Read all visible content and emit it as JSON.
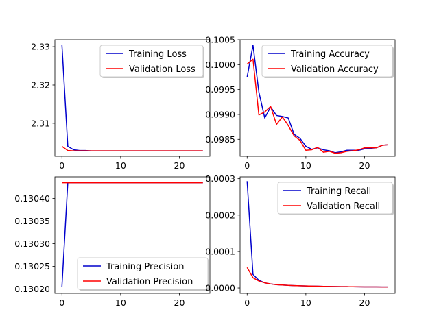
{
  "chart_data": [
    {
      "type": "line",
      "title": "",
      "xlabel": "",
      "ylabel": "",
      "xlim": [
        -1.2,
        25.2
      ],
      "ylim": [
        2.3014,
        2.3318
      ],
      "xticks": [
        0,
        10,
        20
      ],
      "xtick_labels": [
        "0",
        "10",
        "20"
      ],
      "yticks": [
        2.31,
        2.32,
        2.33
      ],
      "ytick_labels": [
        "2.31",
        "2.32",
        "2.33"
      ],
      "legend_position": "top-right",
      "x": [
        0,
        1,
        2,
        3,
        4,
        5,
        6,
        7,
        8,
        9,
        10,
        11,
        12,
        13,
        14,
        15,
        16,
        17,
        18,
        19,
        20,
        21,
        22,
        23,
        24
      ],
      "series": [
        {
          "name": "Training Loss",
          "color": "#0000cc",
          "values": [
            2.3305,
            2.304,
            2.3031,
            2.3029,
            2.3029,
            2.3028,
            2.3028,
            2.3028,
            2.3028,
            2.3028,
            2.3028,
            2.3028,
            2.3028,
            2.3028,
            2.3028,
            2.3028,
            2.3028,
            2.3028,
            2.3028,
            2.3028,
            2.3028,
            2.3028,
            2.3028,
            2.3028,
            2.3028
          ]
        },
        {
          "name": "Validation Loss",
          "color": "#ff0000",
          "values": [
            2.304,
            2.3029,
            2.3028,
            2.3028,
            2.3028,
            2.3028,
            2.3028,
            2.3028,
            2.3028,
            2.3028,
            2.3028,
            2.3028,
            2.3028,
            2.3028,
            2.3028,
            2.3028,
            2.3028,
            2.3028,
            2.3028,
            2.3028,
            2.3028,
            2.3028,
            2.3028,
            2.3028,
            2.3028
          ]
        }
      ]
    },
    {
      "type": "line",
      "title": "",
      "xlabel": "",
      "ylabel": "",
      "xlim": [
        -1.2,
        25.2
      ],
      "ylim": [
        0.09816,
        0.1005
      ],
      "xticks": [
        0,
        10,
        20
      ],
      "xtick_labels": [
        "0",
        "10",
        "20"
      ],
      "yticks": [
        0.0985,
        0.099,
        0.0995,
        0.1,
        0.1005
      ],
      "ytick_labels": [
        "0.0985",
        "0.0990",
        "0.0995",
        "0.1000",
        "0.1005"
      ],
      "legend_position": "top-right",
      "x": [
        0,
        1,
        2,
        3,
        4,
        5,
        6,
        7,
        8,
        9,
        10,
        11,
        12,
        13,
        14,
        15,
        16,
        17,
        18,
        19,
        20,
        21,
        22,
        23,
        24
      ],
      "series": [
        {
          "name": "Training Accuracy",
          "color": "#0000cc",
          "values": [
            0.09975,
            0.10039,
            0.09945,
            0.09893,
            0.09915,
            0.09898,
            0.09896,
            0.09893,
            0.0986,
            0.09852,
            0.09836,
            0.0983,
            0.09833,
            0.09829,
            0.09827,
            0.09823,
            0.09825,
            0.09828,
            0.09828,
            0.09828,
            0.09831,
            0.09832,
            0.09833,
            0.09838,
            0.09839
          ]
        },
        {
          "name": "Validation Accuracy",
          "color": "#ff0000",
          "values": [
            0.10001,
            0.10011,
            0.09899,
            0.09905,
            0.09916,
            0.0988,
            0.09895,
            0.09878,
            0.09857,
            0.09848,
            0.09828,
            0.09829,
            0.09834,
            0.09824,
            0.09826,
            0.09822,
            0.09823,
            0.09826,
            0.09827,
            0.09829,
            0.09833,
            0.09833,
            0.09833,
            0.09838,
            0.09839
          ]
        }
      ]
    },
    {
      "type": "line",
      "title": "",
      "xlabel": "",
      "ylabel": "",
      "xlim": [
        -1.2,
        25.2
      ],
      "ylim": [
        0.13019,
        0.130448
      ],
      "xticks": [
        0,
        10,
        20
      ],
      "xtick_labels": [
        "0",
        "10",
        "20"
      ],
      "yticks": [
        0.1302,
        0.13025,
        0.1303,
        0.13035,
        0.1304
      ],
      "ytick_labels": [
        "0.13020",
        "0.13025",
        "0.13030",
        "0.13035",
        "0.13040"
      ],
      "legend_position": "lower center",
      "x": [
        0,
        1,
        2,
        3,
        4,
        5,
        6,
        7,
        8,
        9,
        10,
        11,
        12,
        13,
        14,
        15,
        16,
        17,
        18,
        19,
        20,
        21,
        22,
        23,
        24
      ],
      "series": [
        {
          "name": "Training Precision",
          "color": "#0000cc",
          "values": [
            0.130205,
            0.130435,
            0.130435,
            0.130435,
            0.130435,
            0.130435,
            0.130435,
            0.130435,
            0.130435,
            0.130435,
            0.130435,
            0.130435,
            0.130435,
            0.130435,
            0.130435,
            0.130435,
            0.130435,
            0.130435,
            0.130435,
            0.130435,
            0.130435,
            0.130435,
            0.130435,
            0.130435,
            0.130435
          ]
        },
        {
          "name": "Validation Precision",
          "color": "#ff0000",
          "values": [
            0.130435,
            0.130435,
            0.130435,
            0.130435,
            0.130435,
            0.130435,
            0.130435,
            0.130435,
            0.130435,
            0.130435,
            0.130435,
            0.130435,
            0.130435,
            0.130435,
            0.130435,
            0.130435,
            0.130435,
            0.130435,
            0.130435,
            0.130435,
            0.130435,
            0.130435,
            0.130435,
            0.130435,
            0.130435
          ]
        }
      ]
    },
    {
      "type": "line",
      "title": "",
      "xlabel": "",
      "ylabel": "",
      "xlim": [
        -1.2,
        25.2
      ],
      "ylim": [
        -1.5e-05,
        0.000305
      ],
      "xticks": [
        0,
        10,
        20
      ],
      "xtick_labels": [
        "0",
        "10",
        "20"
      ],
      "yticks": [
        0,
        0.0001,
        0.0002,
        0.0003
      ],
      "ytick_labels": [
        "0.0000",
        "0.0001",
        "0.0002",
        "0.0003"
      ],
      "legend_position": "top-right",
      "x": [
        0,
        1,
        2,
        3,
        4,
        5,
        6,
        7,
        8,
        9,
        10,
        11,
        12,
        13,
        14,
        15,
        16,
        17,
        18,
        19,
        20,
        21,
        22,
        23,
        24
      ],
      "series": [
        {
          "name": "Training Recall",
          "color": "#0000cc",
          "values": [
            0.000293,
            3.7e-05,
            2.1e-05,
            1.4e-05,
            1.1e-05,
            9e-06,
            8e-06,
            7.2e-06,
            6.5e-06,
            6e-06,
            5.5e-06,
            5.1e-06,
            4.7e-06,
            4.4e-06,
            4.1e-06,
            3.9e-06,
            3.7e-06,
            3.5e-06,
            3.3e-06,
            3.2e-06,
            3e-06,
            2.9e-06,
            2.8e-06,
            2.7e-06,
            2.6e-06
          ]
        },
        {
          "name": "Validation Recall",
          "color": "#ff0000",
          "values": [
            5.6e-05,
            2.8e-05,
            1.9e-05,
            1.4e-05,
            1.1e-05,
            9e-06,
            8e-06,
            7.2e-06,
            6.5e-06,
            6e-06,
            5.5e-06,
            5.1e-06,
            4.7e-06,
            4.4e-06,
            4.1e-06,
            3.9e-06,
            3.7e-06,
            3.5e-06,
            3.3e-06,
            3.2e-06,
            3e-06,
            2.9e-06,
            2.8e-06,
            2.7e-06,
            2.6e-06
          ]
        }
      ]
    }
  ]
}
